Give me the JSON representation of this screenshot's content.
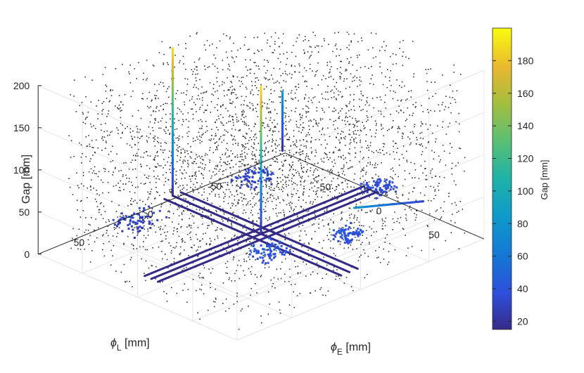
{
  "chart_data": {
    "type": "scatter3d",
    "title": "",
    "axes": {
      "x": {
        "label": "ϕ",
        "label_sub": "E",
        "label_unit": " [mm]",
        "ticks": [
          -50,
          0,
          50
        ],
        "lim": [
          -90,
          90
        ]
      },
      "y": {
        "label": "ϕ",
        "label_sub": "L",
        "label_unit": " [mm]",
        "ticks": [
          -50,
          0,
          50
        ],
        "lim": [
          -90,
          90
        ]
      },
      "z": {
        "label": "Gap [mm]",
        "ticks": [
          0,
          50,
          100,
          150,
          200
        ],
        "lim": [
          0,
          200
        ]
      }
    },
    "grid": true,
    "background_points": {
      "color": "#333333",
      "description_count": 3500
    },
    "colorbar": {
      "label": "Gap [mm]",
      "ticks": [
        20,
        40,
        60,
        80,
        100,
        120,
        140,
        160,
        180
      ],
      "lim": [
        15,
        200
      ],
      "colormap": "parula"
    },
    "series": [
      {
        "kind": "line",
        "x": [
          -80,
          80
        ],
        "y": [
          0,
          0
        ],
        "z": [
          15,
          15
        ]
      },
      {
        "kind": "line",
        "x": [
          -80,
          80
        ],
        "y": [
          6,
          6
        ],
        "z": [
          15,
          15
        ]
      },
      {
        "kind": "line",
        "x": [
          -80,
          80
        ],
        "y": [
          -6,
          -6
        ],
        "z": [
          15,
          15
        ]
      },
      {
        "kind": "line",
        "x": [
          0,
          0
        ],
        "y": [
          -80,
          80
        ],
        "z": [
          15,
          15
        ]
      },
      {
        "kind": "line",
        "x": [
          6,
          6
        ],
        "y": [
          -80,
          80
        ],
        "z": [
          15,
          15
        ]
      },
      {
        "kind": "line",
        "x": [
          -6,
          -6
        ],
        "y": [
          -80,
          80
        ],
        "z": [
          15,
          15
        ]
      },
      {
        "kind": "vertical",
        "x": [
          -80,
          -80
        ],
        "y": [
          0,
          0
        ],
        "z": [
          15,
          190
        ]
      },
      {
        "kind": "vertical",
        "x": [
          0,
          0
        ],
        "y": [
          0,
          0
        ],
        "z": [
          15,
          190
        ]
      },
      {
        "kind": "vertical",
        "x": [
          -80,
          -80
        ],
        "y": [
          -80,
          -80
        ],
        "z": [
          15,
          85
        ]
      },
      {
        "kind": "line",
        "x": [
          50,
          72
        ],
        "y": [
          -78,
          -10
        ],
        "z": [
          30,
          80
        ]
      }
    ],
    "clusters": [
      {
        "x": -55,
        "y": 45,
        "z": 30,
        "spread": 12
      },
      {
        "x": -50,
        "y": -35,
        "z": 30,
        "spread": 10
      },
      {
        "x": 45,
        "y": 30,
        "z": 40,
        "spread": 10
      },
      {
        "x": 60,
        "y": -15,
        "z": 40,
        "spread": 8
      },
      {
        "x": 20,
        "y": -70,
        "z": 35,
        "spread": 8
      }
    ]
  }
}
